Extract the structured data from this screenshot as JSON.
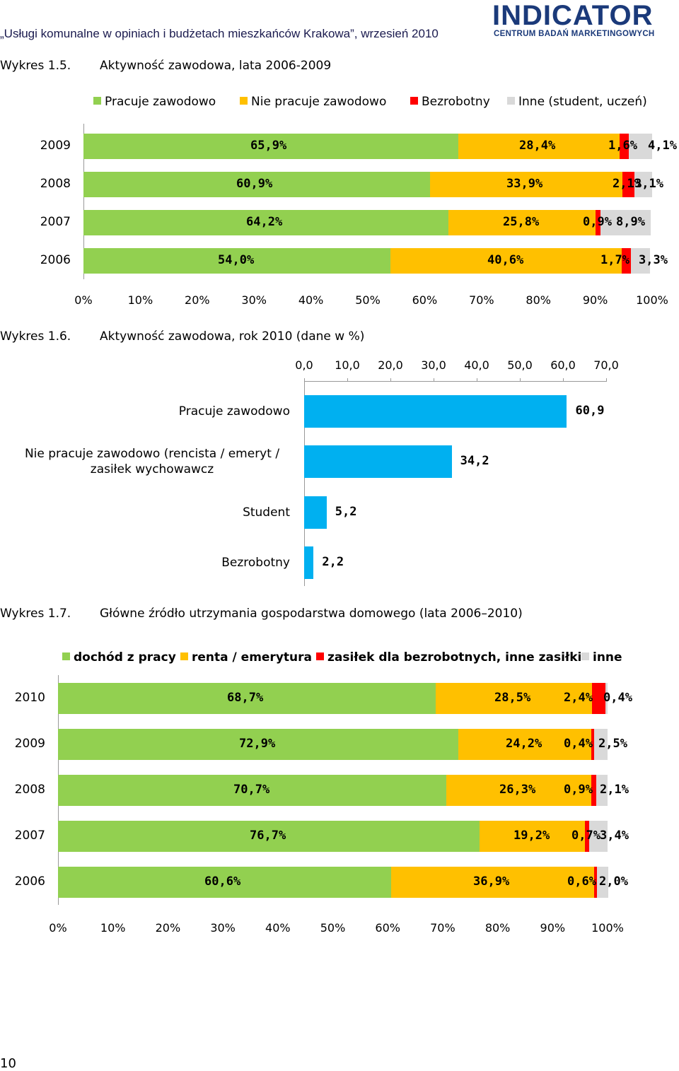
{
  "header": {
    "title": "„Usługi komunalne w opiniach i budżetach mieszkańców Krakowa”, wrzesień 2010",
    "logo_main": "INDICATOR",
    "logo_sub": "CENTRUM BADAŃ MARKETINGOWYCH"
  },
  "colors": {
    "green": "#92d050",
    "yellow": "#ffc000",
    "red": "#ff0000",
    "gray": "#d9d9d9",
    "blue": "#00b0f0"
  },
  "page_number": "10",
  "chart_data": [
    {
      "id": "fig15",
      "type": "bar",
      "orientation": "horizontal-stacked-100",
      "label": "Wykres 1.5.",
      "title": "Aktywność zawodowa, lata 2006-2009",
      "legend": [
        "Pracuje zawodowo",
        "Nie pracuje zawodowo",
        "Bezrobotny",
        "Inne (student, uczeń)"
      ],
      "categories": [
        "2009",
        "2008",
        "2007",
        "2006"
      ],
      "series": [
        {
          "name": "Pracuje zawodowo",
          "values": [
            65.9,
            60.9,
            64.2,
            54.0
          ],
          "labels": [
            "65,9%",
            "60,9%",
            "64,2%",
            "54,0%"
          ]
        },
        {
          "name": "Nie pracuje zawodowo",
          "values": [
            28.4,
            33.9,
            25.8,
            40.6
          ],
          "labels": [
            "28,4%",
            "33,9%",
            "25,8%",
            "40,6%"
          ]
        },
        {
          "name": "Bezrobotny",
          "values": [
            1.6,
            2.1,
            0.9,
            1.7
          ],
          "labels": [
            "1,6%",
            "2,1%",
            "0,9%",
            "1,7%"
          ]
        },
        {
          "name": "Inne (student, uczeń)",
          "values": [
            4.1,
            3.1,
            8.9,
            3.3
          ],
          "labels": [
            "4,1%",
            "3,1%",
            "8,9%",
            "3,3%"
          ]
        }
      ],
      "xticks": [
        "0%",
        "10%",
        "20%",
        "30%",
        "40%",
        "50%",
        "60%",
        "70%",
        "80%",
        "90%",
        "100%"
      ],
      "xlim": [
        0,
        100
      ]
    },
    {
      "id": "fig16",
      "type": "bar",
      "orientation": "horizontal",
      "label": "Wykres 1.6.",
      "title": "Aktywność zawodowa, rok 2010 (dane w %)",
      "categories": [
        "Pracuje zawodowo",
        "Nie pracuje zawodowo (rencista / emeryt / zasiłek wychowawcz",
        "Student",
        "Bezrobotny"
      ],
      "category_lines": [
        [
          "Pracuje zawodowo"
        ],
        [
          "Nie pracuje zawodowo (rencista / emeryt /",
          "zasiłek wychowawcz"
        ],
        [
          "Student"
        ],
        [
          "Bezrobotny"
        ]
      ],
      "values": [
        60.9,
        34.2,
        5.2,
        2.2
      ],
      "labels": [
        "60,9",
        "34,2",
        "5,2",
        "2,2"
      ],
      "xticks": [
        "0,0",
        "10,0",
        "20,0",
        "30,0",
        "40,0",
        "50,0",
        "60,0",
        "70,0"
      ],
      "xlim": [
        0,
        70
      ]
    },
    {
      "id": "fig17",
      "type": "bar",
      "orientation": "horizontal-stacked-100",
      "label": "Wykres 1.7.",
      "title": "Główne źródło utrzymania gospodarstwa domowego (lata 2006–2010)",
      "legend": [
        "dochód z pracy",
        "renta / emerytura",
        "zasiłek dla bezrobotnych, inne zasiłki",
        "inne"
      ],
      "categories": [
        "2010",
        "2009",
        "2008",
        "2007",
        "2006"
      ],
      "series": [
        {
          "name": "dochód z pracy",
          "values": [
            68.7,
            72.9,
            70.7,
            76.7,
            60.6
          ],
          "labels": [
            "68,7%",
            "72,9%",
            "70,7%",
            "76,7%",
            "60,6%"
          ]
        },
        {
          "name": "renta / emerytura",
          "values": [
            28.5,
            24.2,
            26.3,
            19.2,
            36.9
          ],
          "labels": [
            "28,5%",
            "24,2%",
            "26,3%",
            "19,2%",
            "36,9%"
          ]
        },
        {
          "name": "zasiłek dla bezrobotnych, inne zasiłki",
          "values": [
            2.4,
            0.4,
            0.9,
            0.7,
            0.6
          ],
          "labels": [
            "2,4%",
            "0,4%",
            "0,9%",
            "0,7%",
            "0,6%"
          ]
        },
        {
          "name": "inne",
          "values": [
            0.4,
            2.5,
            2.1,
            3.4,
            2.0
          ],
          "labels": [
            "0,4%",
            "2,5%",
            "2,1%",
            "3,4%",
            "2,0%"
          ]
        }
      ],
      "xticks": [
        "0%",
        "10%",
        "20%",
        "30%",
        "40%",
        "50%",
        "60%",
        "70%",
        "80%",
        "90%",
        "100%"
      ],
      "xlim": [
        0,
        100
      ]
    }
  ]
}
